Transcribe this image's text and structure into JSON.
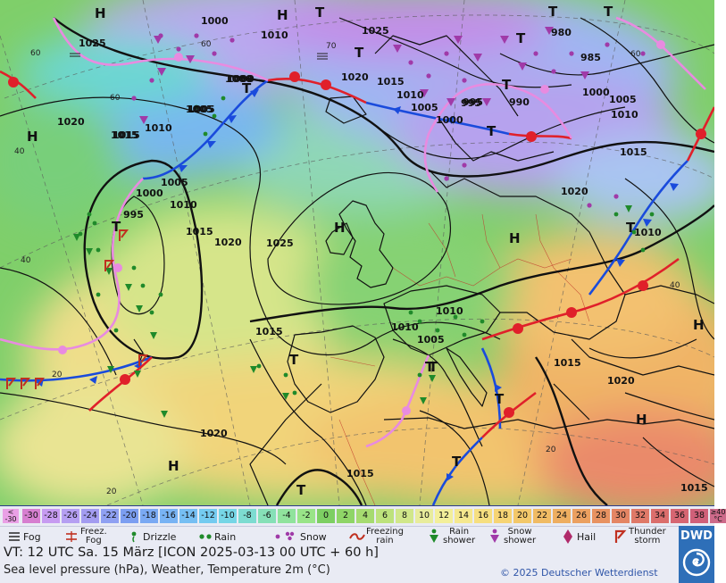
{
  "map": {
    "pressure_labels": [
      {
        "text": "1000"
      },
      {
        "text": "1010"
      },
      {
        "text": "1025"
      },
      {
        "text": "980"
      },
      {
        "text": "985"
      },
      {
        "text": "1025"
      },
      {
        "text": "1020"
      },
      {
        "text": "1015"
      },
      {
        "text": "1010"
      },
      {
        "text": "1005"
      },
      {
        "text": "1000"
      },
      {
        "text": "1020"
      },
      {
        "text": "1015"
      },
      {
        "text": "1010"
      },
      {
        "text": "1005"
      },
      {
        "text": "1000"
      },
      {
        "text": "995"
      },
      {
        "text": "1000"
      },
      {
        "text": "1010"
      },
      {
        "text": "1015"
      },
      {
        "text": "1020"
      },
      {
        "text": "1025"
      },
      {
        "text": "1010"
      },
      {
        "text": "1005"
      },
      {
        "text": "995"
      },
      {
        "text": "990"
      },
      {
        "text": "1000"
      },
      {
        "text": "1005"
      },
      {
        "text": "1010"
      },
      {
        "text": "1015"
      },
      {
        "text": "1020"
      },
      {
        "text": "1015"
      },
      {
        "text": "1010"
      },
      {
        "text": "1005"
      },
      {
        "text": "1015"
      },
      {
        "text": "1020"
      },
      {
        "text": "1015"
      },
      {
        "text": "1020"
      },
      {
        "text": "1015"
      },
      {
        "text": "1010"
      },
      {
        "text": "1000"
      },
      {
        "text": "1005"
      },
      {
        "text": "995"
      },
      {
        "text": "1015"
      }
    ],
    "centers": [
      {
        "text": "H"
      },
      {
        "text": "H"
      },
      {
        "text": "T"
      },
      {
        "text": "T"
      },
      {
        "text": "T"
      },
      {
        "text": "T"
      },
      {
        "text": "T"
      },
      {
        "text": "T"
      },
      {
        "text": "T"
      },
      {
        "text": "T"
      },
      {
        "text": "H"
      },
      {
        "text": "H"
      },
      {
        "text": "H"
      },
      {
        "text": "T"
      },
      {
        "text": "T"
      },
      {
        "text": "T"
      },
      {
        "text": "T"
      },
      {
        "text": "T"
      },
      {
        "text": "H"
      },
      {
        "text": "H"
      },
      {
        "text": "T"
      },
      {
        "text": "T"
      },
      {
        "text": "H"
      },
      {
        "text": "T"
      }
    ],
    "temp_labels": [
      {
        "text": "60"
      },
      {
        "text": "60"
      },
      {
        "text": "40"
      },
      {
        "text": "40"
      },
      {
        "text": "20"
      },
      {
        "text": "20"
      },
      {
        "text": "20"
      },
      {
        "text": "40"
      },
      {
        "text": "60"
      },
      {
        "text": "70"
      },
      {
        "text": "60"
      }
    ],
    "colors": {
      "land": "#7fcf6a",
      "land_dark": "#5ab657",
      "warm": "#f4c46e",
      "hot": "#ea8a6a",
      "cold": "#b9a8ef",
      "very_cold": "#c28ee8",
      "sea_warm": "#eede8a",
      "isobar": "#111111",
      "cold_front": "#1a4bdc",
      "warm_front": "#e0202a",
      "occlusion": "#e88be0"
    }
  },
  "scale": {
    "first": {
      "top": "<",
      "bottom": "-30"
    },
    "values": [
      "-30",
      "-28",
      "-26",
      "-24",
      "-22",
      "-20",
      "-18",
      "-16",
      "-14",
      "-12",
      "-10",
      "-8",
      "-6",
      "-4",
      "-2",
      "0",
      "2",
      "4",
      "6",
      "8",
      "10",
      "12",
      "14",
      "16",
      "18",
      "20",
      "22",
      "24",
      "26",
      "28",
      "30",
      "32",
      "34",
      "36",
      "38"
    ],
    "colors": [
      "#d77fd0",
      "#c79bf1",
      "#b59ff2",
      "#a39cf0",
      "#8fa0f2",
      "#7c9ef1",
      "#7aa9f3",
      "#78b3f4",
      "#76bff3",
      "#74cbf0",
      "#76d6e6",
      "#7ddcd1",
      "#86e0b7",
      "#90e39d",
      "#99e488",
      "#7dcf63",
      "#8fd567",
      "#a6db70",
      "#bde27c",
      "#d1e78a",
      "#e8ec9c",
      "#f3ef9a",
      "#f5e88e",
      "#f6df80",
      "#f6d474",
      "#f3c86a",
      "#f0bb64",
      "#eeae60",
      "#eba060",
      "#e89261",
      "#e48564",
      "#df7968",
      "#db6e6c",
      "#d66672",
      "#d06079"
    ],
    "last": {
      "top": "≥40",
      "bottom": "°C"
    }
  },
  "legend": [
    {
      "label": "Fog",
      "icon": "fog-icon"
    },
    {
      "label": "Freez.\nFog",
      "icon": "freezing-fog-icon"
    },
    {
      "label": "Drizzle",
      "icon": "drizzle-icon"
    },
    {
      "label": "Rain",
      "icon": "rain-icon"
    },
    {
      "label": "Snow",
      "icon": "snow-icon"
    },
    {
      "label": "Freezing\nrain",
      "icon": "freezing-rain-icon"
    },
    {
      "label": "Rain\nshower",
      "icon": "rain-shower-icon"
    },
    {
      "label": "Snow\nshower",
      "icon": "snow-shower-icon"
    },
    {
      "label": "Hail",
      "icon": "hail-icon"
    },
    {
      "label": "Thunder\nstorm",
      "icon": "thunderstorm-icon"
    }
  ],
  "footer": {
    "valid_time": "VT: 12 UTC Sa.  15 März [ICON 2025-03-13  00 UTC + 60 h]",
    "subtitle": "Sea level pressure (hPa), Weather, Temperature 2m (°C)",
    "copyright": "© 2025 Deutscher Wetterdienst",
    "logo_text": "DWD"
  }
}
